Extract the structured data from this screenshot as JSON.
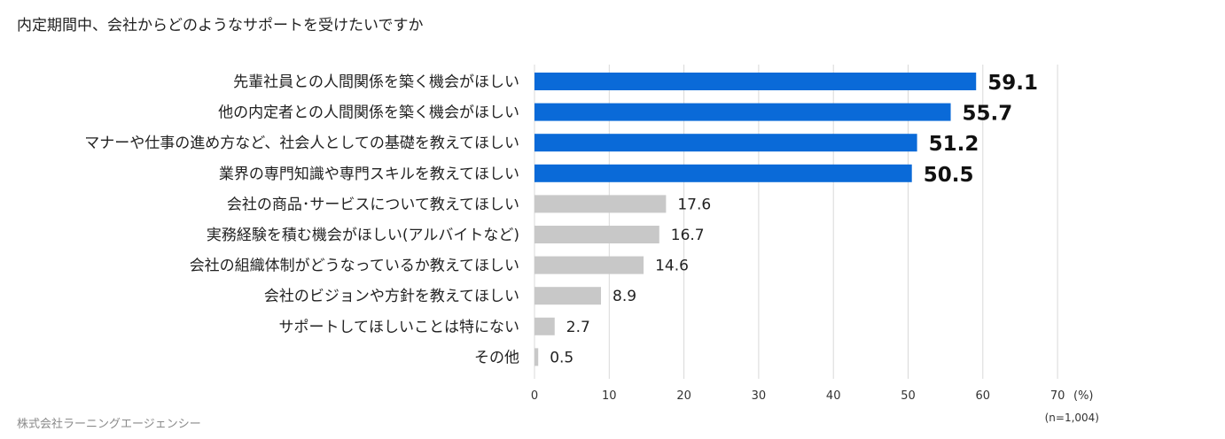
{
  "chart_data": {
    "type": "bar",
    "orientation": "horizontal",
    "title": "内定期間中、会社からどのようなサポートを受けたいですか",
    "categories": [
      "先輩社員との人間関係を築く機会がほしい",
      "他の内定者との人間関係を築く機会がほしい",
      "マナーや仕事の進め方など、社会人としての基礎を教えてほしい",
      "業界の専門知識や専門スキルを教えてほしい",
      "会社の商品･サービスについて教えてほしい",
      "実務経験を積む機会がほしい(アルバイトなど)",
      "会社の組織体制がどうなっているか教えてほしい",
      "会社のビジョンや方針を教えてほしい",
      "サポートしてほしいことは特にない",
      "その他"
    ],
    "values": [
      59.1,
      55.7,
      51.2,
      50.5,
      17.6,
      16.7,
      14.6,
      8.9,
      2.7,
      0.5
    ],
    "value_labels": [
      "59.1",
      "55.7",
      "51.2",
      "50.5",
      "17.6",
      "16.7",
      "14.6",
      "8.9",
      "2.7",
      "0.5"
    ],
    "highlight_count": 4,
    "xlim": [
      0,
      70
    ],
    "x_ticks": [
      0,
      10,
      20,
      30,
      40,
      50,
      60,
      70
    ],
    "x_tick_labels": [
      "0",
      "10",
      "20",
      "30",
      "40",
      "50",
      "60",
      "70"
    ],
    "x_unit": "(%)",
    "sample_note": "(n=1,004)",
    "source": "株式会社ラーニングエージェンシー",
    "grid": true,
    "colors": {
      "highlight": "#0a6ad8",
      "normal": "#c8c8c8"
    }
  }
}
